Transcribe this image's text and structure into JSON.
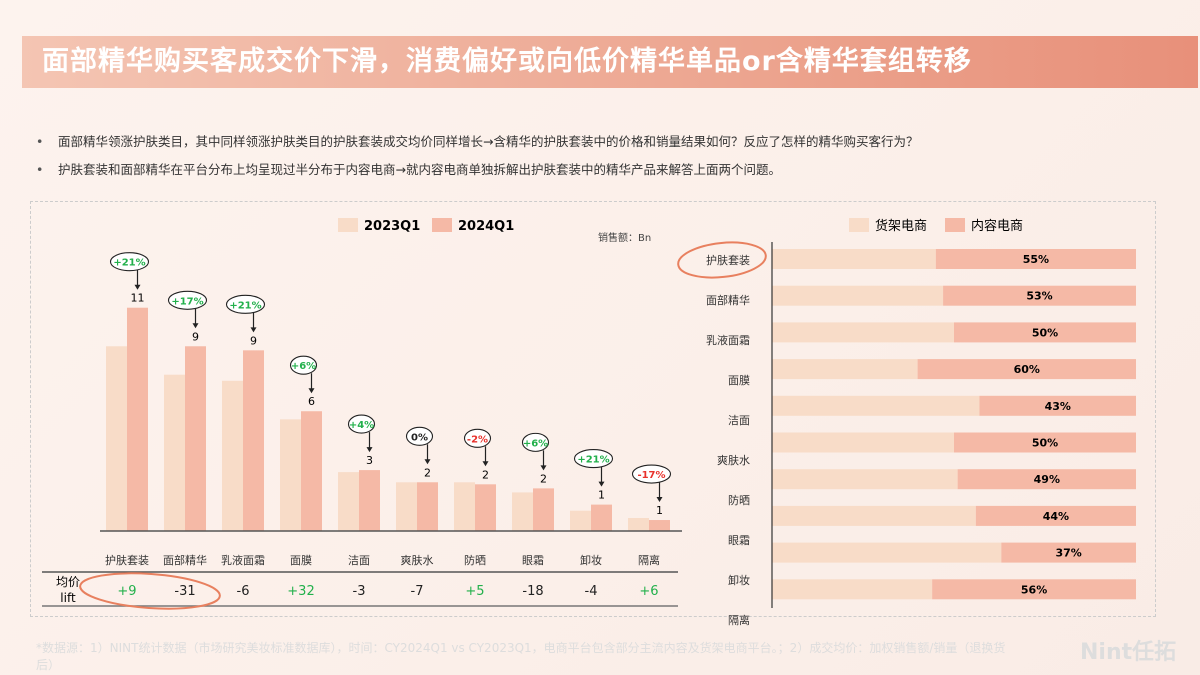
{
  "title": "面部精华购买客成交价下滑，消费偏好或向低价精华单品or含精华套组转移",
  "bullets": [
    "面部精华领涨护肤类目，其中同样领涨护肤类目的护肤套装成交均价同样增长→含精华的护肤套装中的价格和销量结果如何？反应了怎样的精华购买客行为？",
    "护肤套装和面部精华在平台分布上均呈现过半分布于内容电商→就内容电商单独拆解出护肤套装中的精华产品来解答上面两个问题。"
  ],
  "footnote": "*数据源：1）NINT统计数据（市场研究美妆标准数据库），时间：CY2024Q1 vs CY2023Q1，电商平台包含部分主流内容及货架电商平台。；2）成交均价：加权销售额/销量（退换货后）",
  "logo": "Nint任拓",
  "colors": {
    "q2023": "#f8dcc8",
    "q2024": "#f5b9a6",
    "green": "#22b04b",
    "red": "#e8322c",
    "circle": "#e8805f"
  },
  "chart_data": [
    {
      "type": "bar",
      "unit_label": "销售额：Bn",
      "legend_position": "top",
      "categories": [
        "护肤套装",
        "面部精华",
        "乳液面霜",
        "面膜",
        "洁面",
        "爽肤水",
        "防晒",
        "眼霜",
        "卸妆",
        "隔离"
      ],
      "series": [
        {
          "name": "2023Q1",
          "values": [
            9.1,
            7.7,
            7.4,
            5.5,
            2.9,
            2.4,
            2.4,
            1.9,
            1.0,
            0.64
          ]
        },
        {
          "name": "2024Q1",
          "values": [
            11,
            9.1,
            8.9,
            5.9,
            3.0,
            2.4,
            2.3,
            2.1,
            1.3,
            0.54
          ]
        }
      ],
      "data_labels": [
        "11",
        "9",
        "9",
        "6",
        "3",
        "2",
        "2",
        "2",
        "1",
        "1"
      ],
      "growth": [
        "+21%",
        "+17%",
        "+21%",
        "+6%",
        "+4%",
        "0%",
        "-2%",
        "+6%",
        "+21%",
        "-17%"
      ],
      "lift_label": [
        "均价",
        "lift"
      ],
      "lift": [
        "+9",
        "-31",
        "-6",
        "+32",
        "-3",
        "-7",
        "+5",
        "-18",
        "-4",
        "+6"
      ]
    },
    {
      "type": "bar",
      "orientation": "horizontal",
      "stacked": true,
      "legend_position": "top",
      "categories": [
        "护肤套装",
        "面部精华",
        "乳液面霜",
        "面膜",
        "洁面",
        "爽肤水",
        "防晒",
        "眼霜",
        "卸妆",
        "隔离"
      ],
      "series": [
        {
          "name": "货架电商",
          "values": [
            45,
            47,
            50,
            40,
            57,
            50,
            51,
            56,
            63,
            44
          ]
        },
        {
          "name": "内容电商",
          "values": [
            55,
            53,
            50,
            60,
            43,
            50,
            49,
            44,
            37,
            56
          ]
        }
      ],
      "data_labels": [
        "55%",
        "53%",
        "50%",
        "60%",
        "43%",
        "50%",
        "49%",
        "44%",
        "37%",
        "56%"
      ]
    }
  ]
}
